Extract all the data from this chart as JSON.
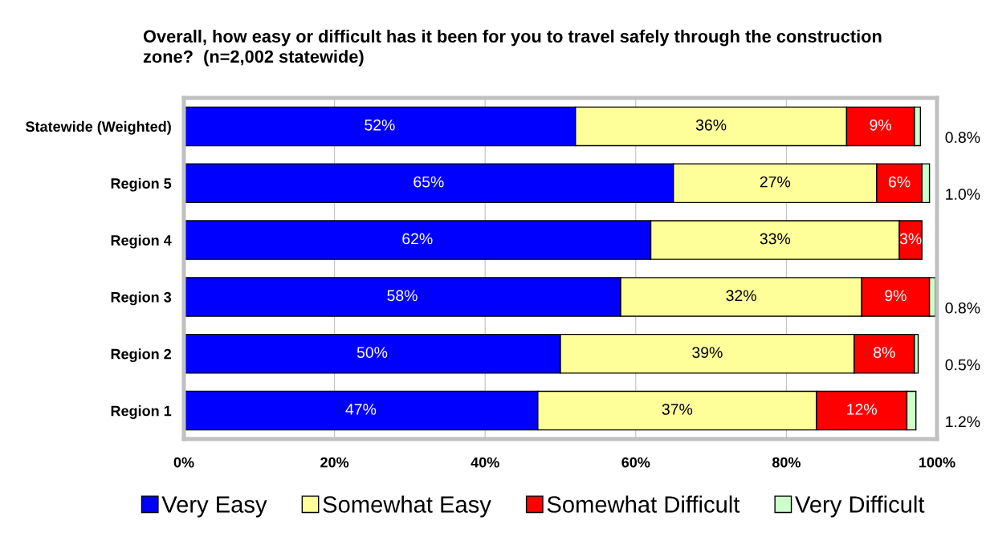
{
  "chart_data": {
    "type": "bar",
    "orientation": "horizontal",
    "stacked": true,
    "title": "Overall, how easy or difficult has it been for you to travel safely through the construction zone?  (n=2,002 statewide)",
    "categories": [
      "Statewide (Weighted)",
      "Region 5",
      "Region 4",
      "Region 3",
      "Region 2",
      "Region 1"
    ],
    "series": [
      {
        "name": "Very Easy",
        "color": "#0000ff",
        "values": [
          52,
          65,
          62,
          58,
          50,
          47
        ],
        "value_labels": [
          "52%",
          "65%",
          "62%",
          "58%",
          "50%",
          "47%"
        ]
      },
      {
        "name": "Somewhat Easy",
        "color": "#ffff99",
        "values": [
          36,
          27,
          33,
          32,
          39,
          37
        ],
        "value_labels": [
          "36%",
          "27%",
          "33%",
          "32%",
          "39%",
          "37%"
        ]
      },
      {
        "name": "Somewhat Difficult",
        "color": "#ff0000",
        "values": [
          9,
          6,
          3,
          9,
          8,
          12
        ],
        "value_labels": [
          "9%",
          "6%",
          "3%",
          "9%",
          "8%",
          "12%"
        ]
      },
      {
        "name": "Very Difficult",
        "color": "#ccffcc",
        "values": [
          0.8,
          1.0,
          null,
          0.8,
          0.5,
          1.2
        ],
        "value_labels": [
          "0.8%",
          "1.0%",
          null,
          "0.8%",
          "0.5%",
          "1.2%"
        ]
      }
    ],
    "xlim": [
      0,
      100
    ],
    "xticks": [
      {
        "value": 0,
        "label": "0%"
      },
      {
        "value": 20,
        "label": "20%"
      },
      {
        "value": 40,
        "label": "40%"
      },
      {
        "value": 60,
        "label": "60%"
      },
      {
        "value": 80,
        "label": "80%"
      },
      {
        "value": 100,
        "label": "100%"
      }
    ],
    "grid": "x",
    "legend": "bottom"
  }
}
